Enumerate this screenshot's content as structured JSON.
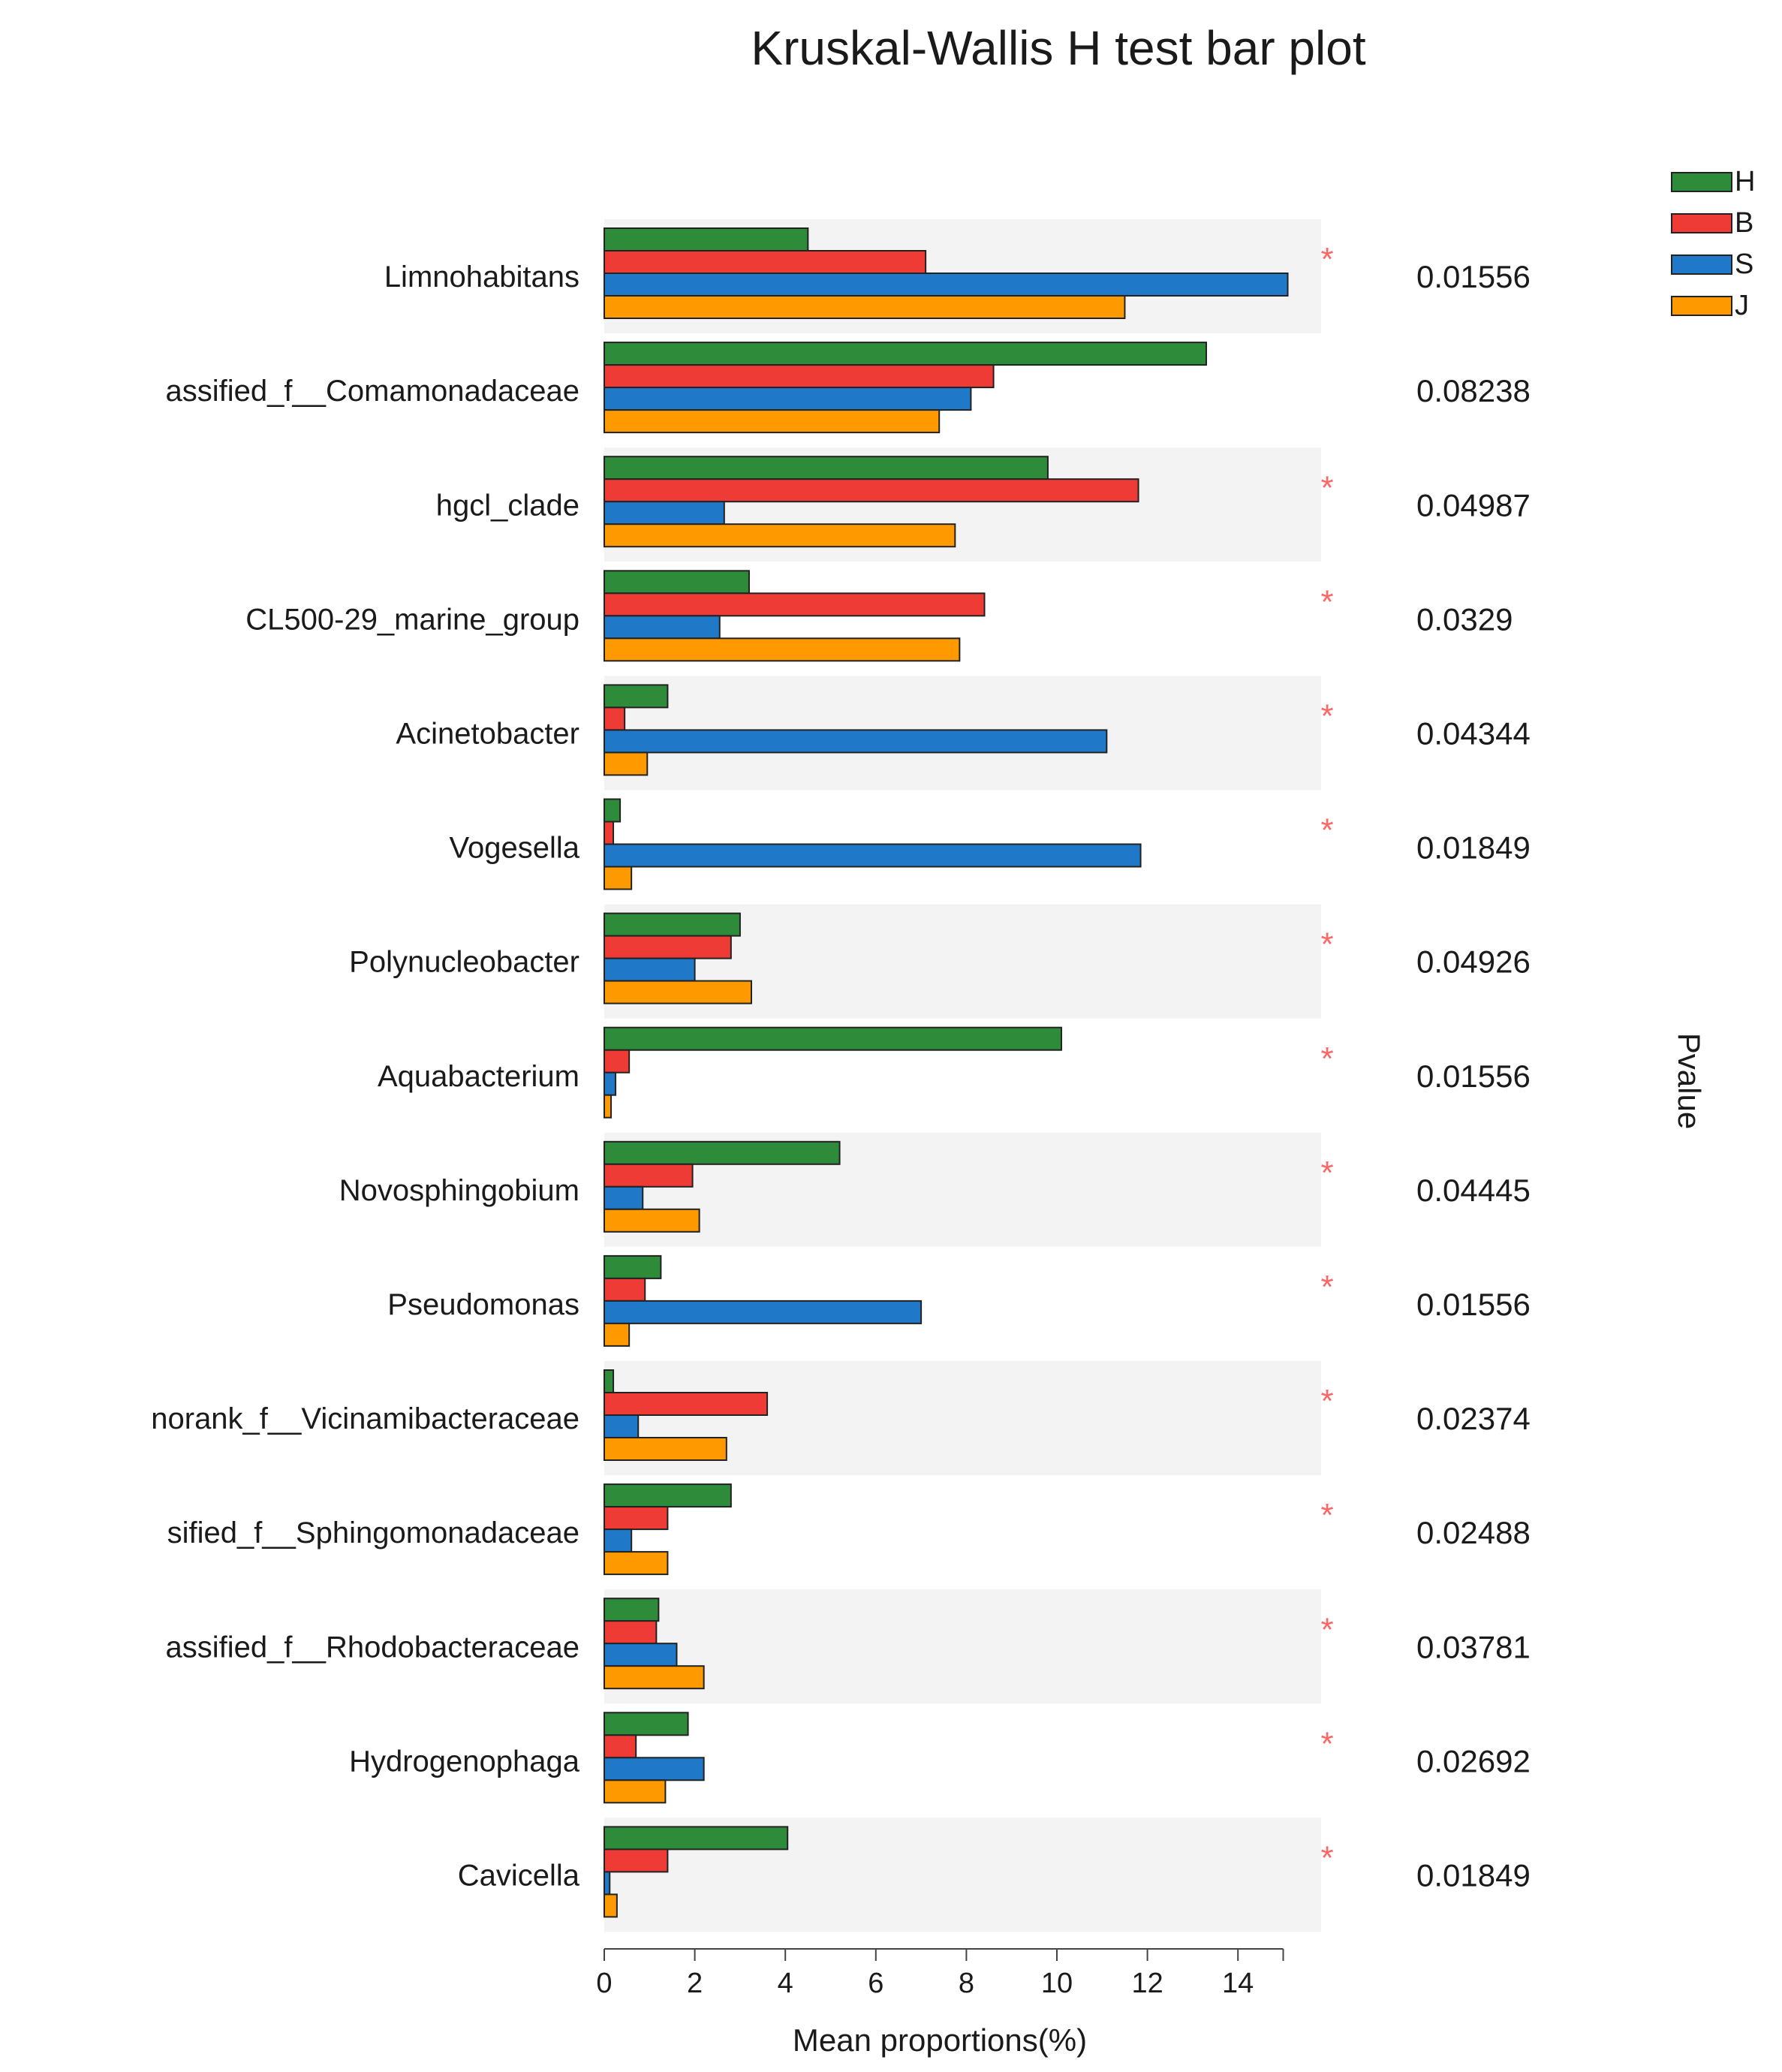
{
  "chart_data": {
    "type": "bar",
    "orientation": "horizontal",
    "title": "Kruskal-Wallis H test bar plot",
    "xlabel": "Mean proportions(%)",
    "right_axis_label": "Pvalue",
    "xlim": [
      0,
      15
    ],
    "xticks": [
      "0",
      "2",
      "4",
      "6",
      "8",
      "10",
      "12",
      "14"
    ],
    "legend_position": "top-right",
    "categories": [
      "Limnohabitans",
      "assified_f__Comamonadaceae",
      "hgcl_clade",
      "CL500-29_marine_group",
      "Acinetobacter",
      "Vogesella",
      "Polynucleobacter",
      "Aquabacterium",
      "Novosphingobium",
      "Pseudomonas",
      "norank_f__Vicinamibacteraceae",
      "sified_f__Sphingomonadaceae",
      "assified_f__Rhodobacteraceae",
      "Hydrogenophaga",
      "Cavicella"
    ],
    "series": [
      {
        "name": "H",
        "color": "#2e8b3a",
        "values": [
          4.5,
          13.3,
          9.8,
          3.2,
          1.4,
          0.35,
          3.0,
          10.1,
          5.2,
          1.25,
          0.2,
          2.8,
          1.2,
          1.85,
          4.05
        ]
      },
      {
        "name": "B",
        "color": "#ef3b36",
        "values": [
          7.1,
          8.6,
          11.8,
          8.4,
          0.45,
          0.2,
          2.8,
          0.55,
          1.95,
          0.9,
          3.6,
          1.4,
          1.15,
          0.7,
          1.4
        ]
      },
      {
        "name": "S",
        "color": "#1f78c8",
        "values": [
          15.1,
          8.1,
          2.65,
          2.55,
          11.1,
          11.85,
          2.0,
          0.25,
          0.85,
          7.0,
          0.75,
          0.6,
          1.6,
          2.2,
          0.12
        ]
      },
      {
        "name": "J",
        "color": "#ff9900",
        "values": [
          11.5,
          7.4,
          7.75,
          7.85,
          0.95,
          0.6,
          3.25,
          0.15,
          2.1,
          0.55,
          2.7,
          1.4,
          2.2,
          1.35,
          0.28
        ]
      }
    ],
    "pvalues": [
      "0.01556",
      "0.08238",
      "0.04987",
      "0.0329",
      "0.04344",
      "0.01849",
      "0.04926",
      "0.01556",
      "0.04445",
      "0.01556",
      "0.02374",
      "0.02488",
      "0.03781",
      "0.02692",
      "0.01849"
    ],
    "significant": [
      true,
      false,
      true,
      true,
      true,
      true,
      true,
      true,
      true,
      true,
      true,
      true,
      true,
      true,
      true
    ],
    "significance_symbol": "*",
    "band_color": "#f3f3f3"
  }
}
